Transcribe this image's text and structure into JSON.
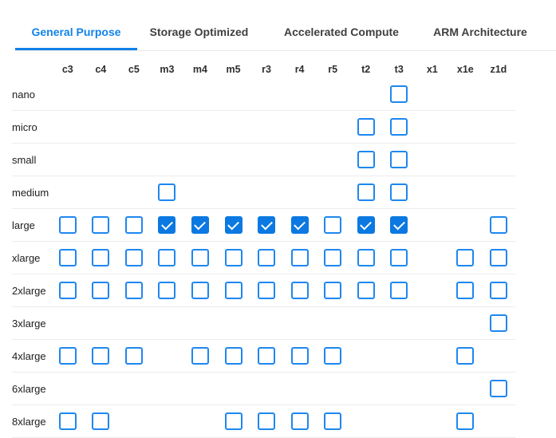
{
  "tabs": {
    "items": [
      {
        "label": "General Purpose",
        "active": true
      },
      {
        "label": "Storage Optimized",
        "active": false
      },
      {
        "label": "Accelerated Compute",
        "active": false
      },
      {
        "label": "ARM Architecture",
        "active": false
      }
    ]
  },
  "matrix": {
    "columns": [
      "c3",
      "c4",
      "c5",
      "m3",
      "m4",
      "m5",
      "r3",
      "r4",
      "r5",
      "t2",
      "t3",
      "x1",
      "x1e",
      "z1d"
    ],
    "rows": [
      {
        "label": "nano",
        "cells": [
          "",
          "",
          "",
          "",
          "",
          "",
          "",
          "",
          "",
          "",
          "u",
          "",
          "",
          ""
        ]
      },
      {
        "label": "micro",
        "cells": [
          "",
          "",
          "",
          "",
          "",
          "",
          "",
          "",
          "",
          "u",
          "u",
          "",
          "",
          ""
        ]
      },
      {
        "label": "small",
        "cells": [
          "",
          "",
          "",
          "",
          "",
          "",
          "",
          "",
          "",
          "u",
          "u",
          "",
          "",
          ""
        ]
      },
      {
        "label": "medium",
        "cells": [
          "",
          "",
          "",
          "u",
          "",
          "",
          "",
          "",
          "",
          "u",
          "u",
          "",
          "",
          ""
        ]
      },
      {
        "label": "large",
        "cells": [
          "u",
          "u",
          "u",
          "c",
          "c",
          "c",
          "c",
          "c",
          "u",
          "c",
          "c",
          "",
          "",
          "u"
        ]
      },
      {
        "label": "xlarge",
        "cells": [
          "u",
          "u",
          "u",
          "u",
          "u",
          "u",
          "u",
          "u",
          "u",
          "u",
          "u",
          "",
          "u",
          "u"
        ]
      },
      {
        "label": "2xlarge",
        "cells": [
          "u",
          "u",
          "u",
          "u",
          "u",
          "u",
          "u",
          "u",
          "u",
          "u",
          "u",
          "",
          "u",
          "u"
        ]
      },
      {
        "label": "3xlarge",
        "cells": [
          "",
          "",
          "",
          "",
          "",
          "",
          "",
          "",
          "",
          "",
          "",
          "",
          "",
          "u"
        ]
      },
      {
        "label": "4xlarge",
        "cells": [
          "u",
          "u",
          "u",
          "",
          "u",
          "u",
          "u",
          "u",
          "u",
          "",
          "",
          "",
          "u",
          ""
        ]
      },
      {
        "label": "6xlarge",
        "cells": [
          "",
          "",
          "",
          "",
          "",
          "",
          "",
          "",
          "",
          "",
          "",
          "",
          "",
          "u"
        ]
      },
      {
        "label": "8xlarge",
        "cells": [
          "u",
          "u",
          "",
          "",
          "",
          "u",
          "u",
          "u",
          "u",
          "",
          "",
          "",
          "u",
          ""
        ]
      }
    ]
  },
  "colors": {
    "tab_active": "#1182e8",
    "tab_inactive": "#3f3f41",
    "checkbox_border": "#1e87f0",
    "checkbox_checked_fill": "#0b79e1",
    "row_divider": "#ececec",
    "tabs_divider": "#e8e8e8",
    "text": "#222222"
  }
}
